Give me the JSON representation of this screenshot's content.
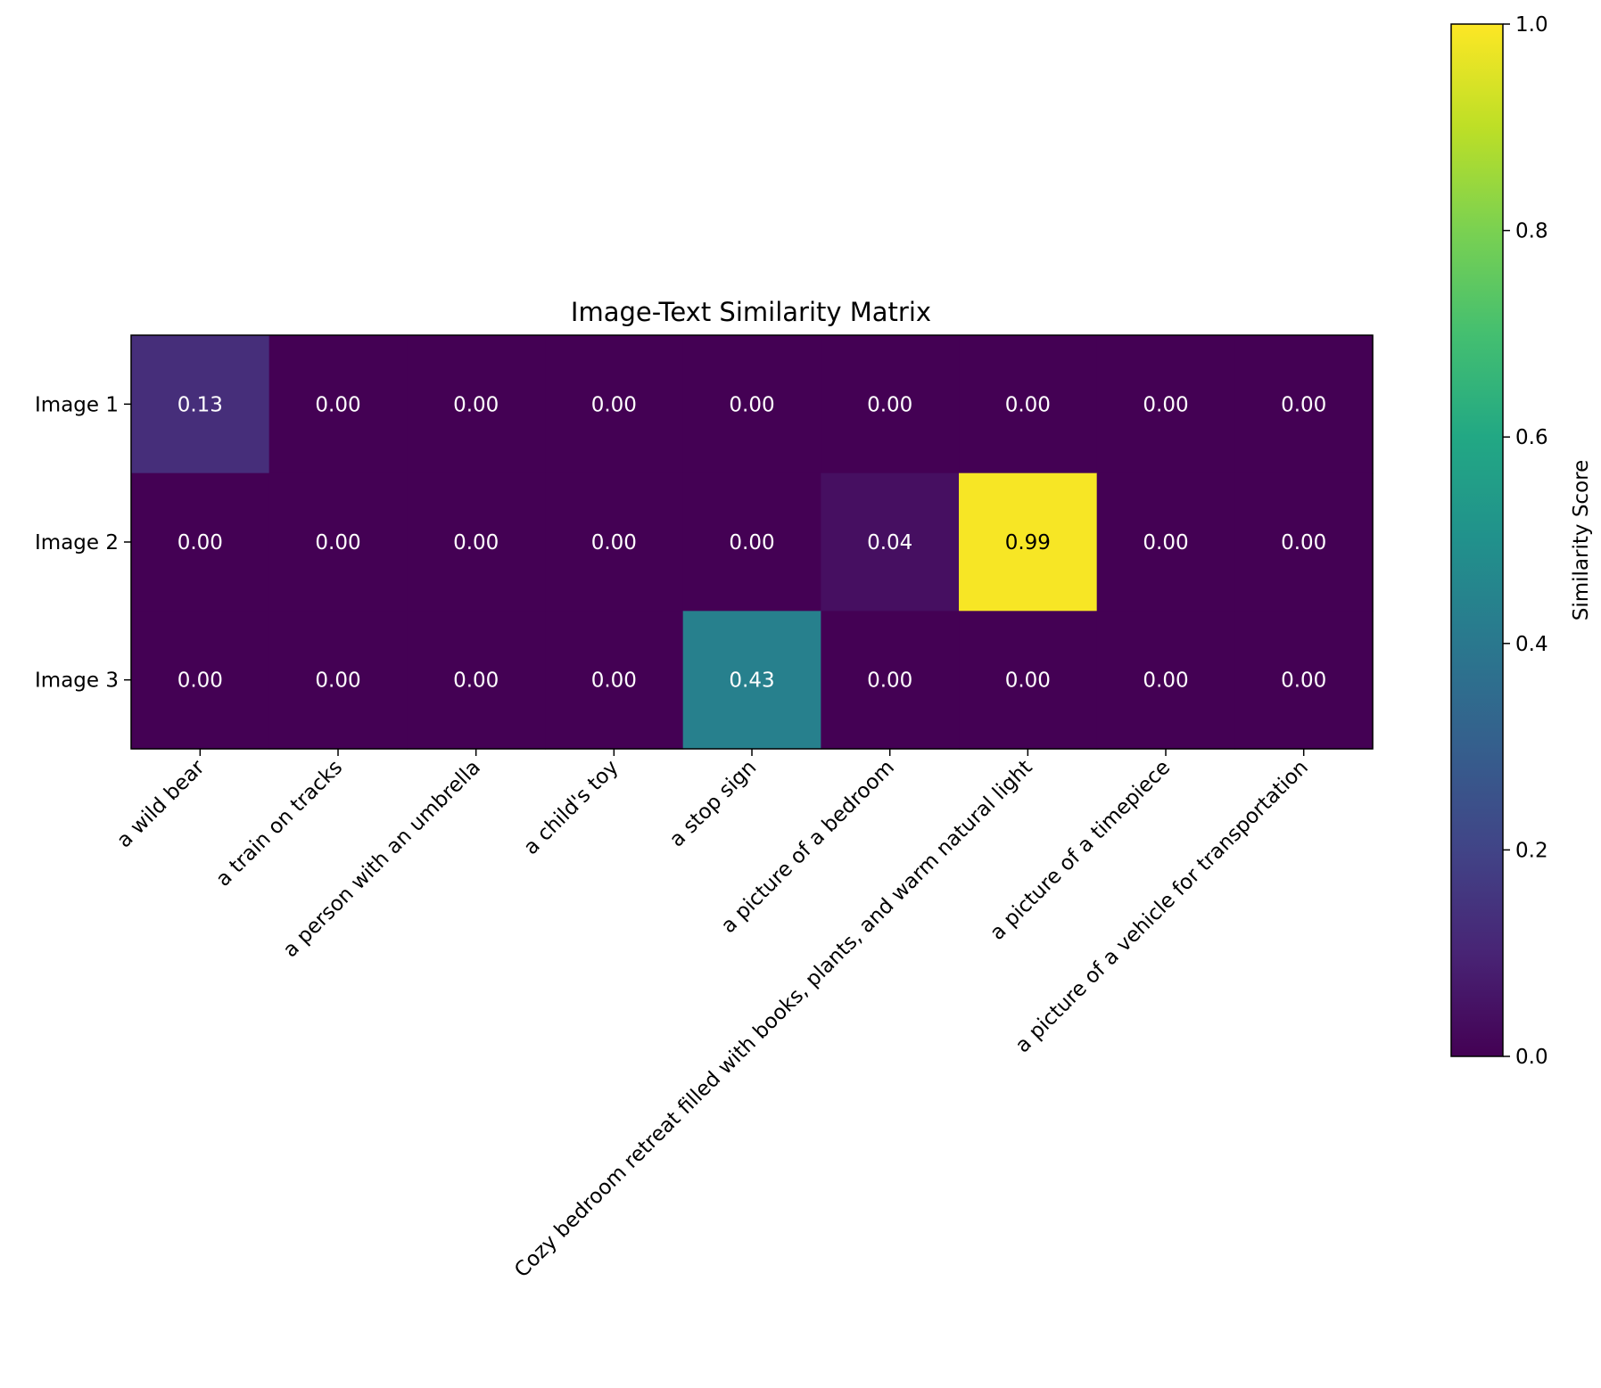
{
  "chart_data": {
    "type": "heatmap",
    "title": "Image-Text Similarity Matrix",
    "rows": [
      "Image 1",
      "Image 2",
      "Image 3"
    ],
    "columns": [
      "a wild bear",
      "a train on tracks",
      "a person with an umbrella",
      "a child's toy",
      "a stop sign",
      "a picture of a bedroom",
      "Cozy bedroom retreat filled with books, plants, and warm natural light",
      "a picture of a timepiece",
      "a picture of a vehicle for transportation"
    ],
    "values": [
      [
        0.13,
        0.0,
        0.0,
        0.0,
        0.0,
        0.0,
        0.0,
        0.0,
        0.0
      ],
      [
        0.0,
        0.0,
        0.0,
        0.0,
        0.0,
        0.04,
        0.99,
        0.0,
        0.0
      ],
      [
        0.0,
        0.0,
        0.0,
        0.0,
        0.43,
        0.0,
        0.0,
        0.0,
        0.0
      ]
    ],
    "value_labels": [
      [
        "0.13",
        "0.00",
        "0.00",
        "0.00",
        "0.00",
        "0.00",
        "0.00",
        "0.00",
        "0.00"
      ],
      [
        "0.00",
        "0.00",
        "0.00",
        "0.00",
        "0.00",
        "0.04",
        "0.99",
        "0.00",
        "0.00"
      ],
      [
        "0.00",
        "0.00",
        "0.00",
        "0.00",
        "0.43",
        "0.00",
        "0.00",
        "0.00",
        "0.00"
      ]
    ],
    "colormap": "viridis",
    "colorbar": {
      "label": "Similarity Score",
      "range": [
        0,
        1
      ],
      "ticks": [
        0.0,
        0.2,
        0.4,
        0.6,
        0.8,
        1.0
      ],
      "tick_labels": [
        "0.0",
        "0.2",
        "0.4",
        "0.6",
        "0.8",
        "1.0"
      ],
      "placement": "right"
    },
    "text_colors": {
      "dark_cell": "#ffffff",
      "bright_cell": "#000000"
    },
    "grid": false
  }
}
